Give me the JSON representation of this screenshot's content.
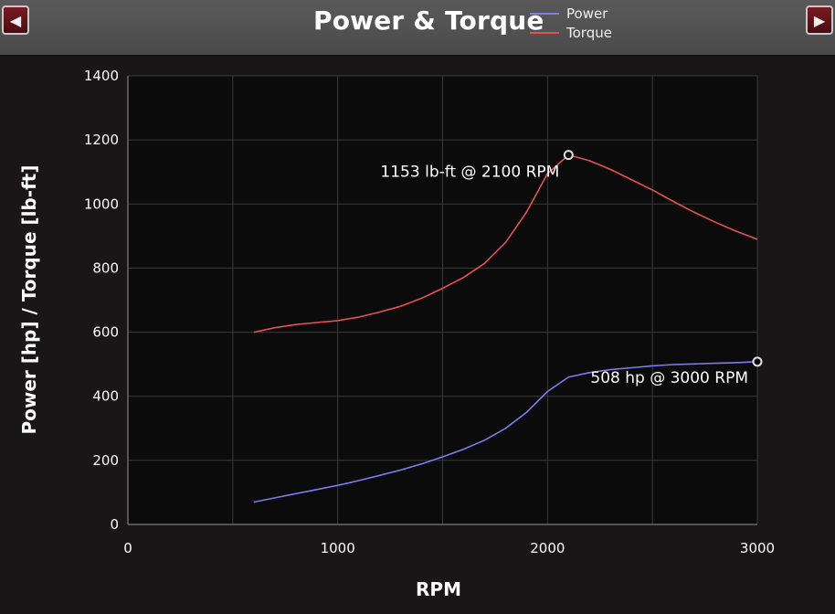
{
  "header": {
    "title": "Power & Torque",
    "prev_icon": "◀",
    "next_icon": "▶"
  },
  "chart_data": {
    "type": "line",
    "title": "Power & Torque",
    "xlabel": "RPM",
    "ylabel": "Power [hp] / Torque [lb-ft]",
    "xlim": [
      0,
      3000
    ],
    "ylim": [
      0,
      1400
    ],
    "x_ticks": [
      0,
      1000,
      2000,
      3000
    ],
    "y_ticks": [
      0,
      200,
      400,
      600,
      800,
      1000,
      1200,
      1400
    ],
    "grid": true,
    "legend_position": "top-right",
    "series": [
      {
        "name": "Power",
        "color": "#7c7cf0",
        "x": [
          600,
          700,
          800,
          900,
          1000,
          1100,
          1200,
          1300,
          1400,
          1500,
          1600,
          1700,
          1800,
          1900,
          2000,
          2100,
          2200,
          2300,
          2400,
          2500,
          2600,
          2700,
          2800,
          2900,
          3000
        ],
        "y": [
          70,
          83,
          96,
          109,
          122,
          137,
          153,
          170,
          189,
          211,
          235,
          263,
          300,
          350,
          415,
          460,
          474,
          483,
          489,
          495,
          499,
          501,
          503,
          505,
          508
        ]
      },
      {
        "name": "Torque",
        "color": "#e85050",
        "x": [
          600,
          700,
          800,
          900,
          1000,
          1100,
          1200,
          1300,
          1400,
          1500,
          1600,
          1700,
          1800,
          1900,
          2000,
          2100,
          2200,
          2300,
          2400,
          2500,
          2600,
          2700,
          2800,
          2900,
          3000
        ],
        "y": [
          600,
          614,
          624,
          630,
          636,
          647,
          663,
          681,
          706,
          737,
          771,
          815,
          880,
          975,
          1095,
          1153,
          1135,
          1108,
          1076,
          1044,
          1008,
          974,
          943,
          915,
          890
        ]
      }
    ],
    "annotations": [
      {
        "text": "1153 lb-ft @ 2100 RPM",
        "x": 2100,
        "y": 1153,
        "series": "Torque"
      },
      {
        "text": "508 hp @ 3000 RPM",
        "x": 3000,
        "y": 508,
        "series": "Power"
      }
    ]
  }
}
